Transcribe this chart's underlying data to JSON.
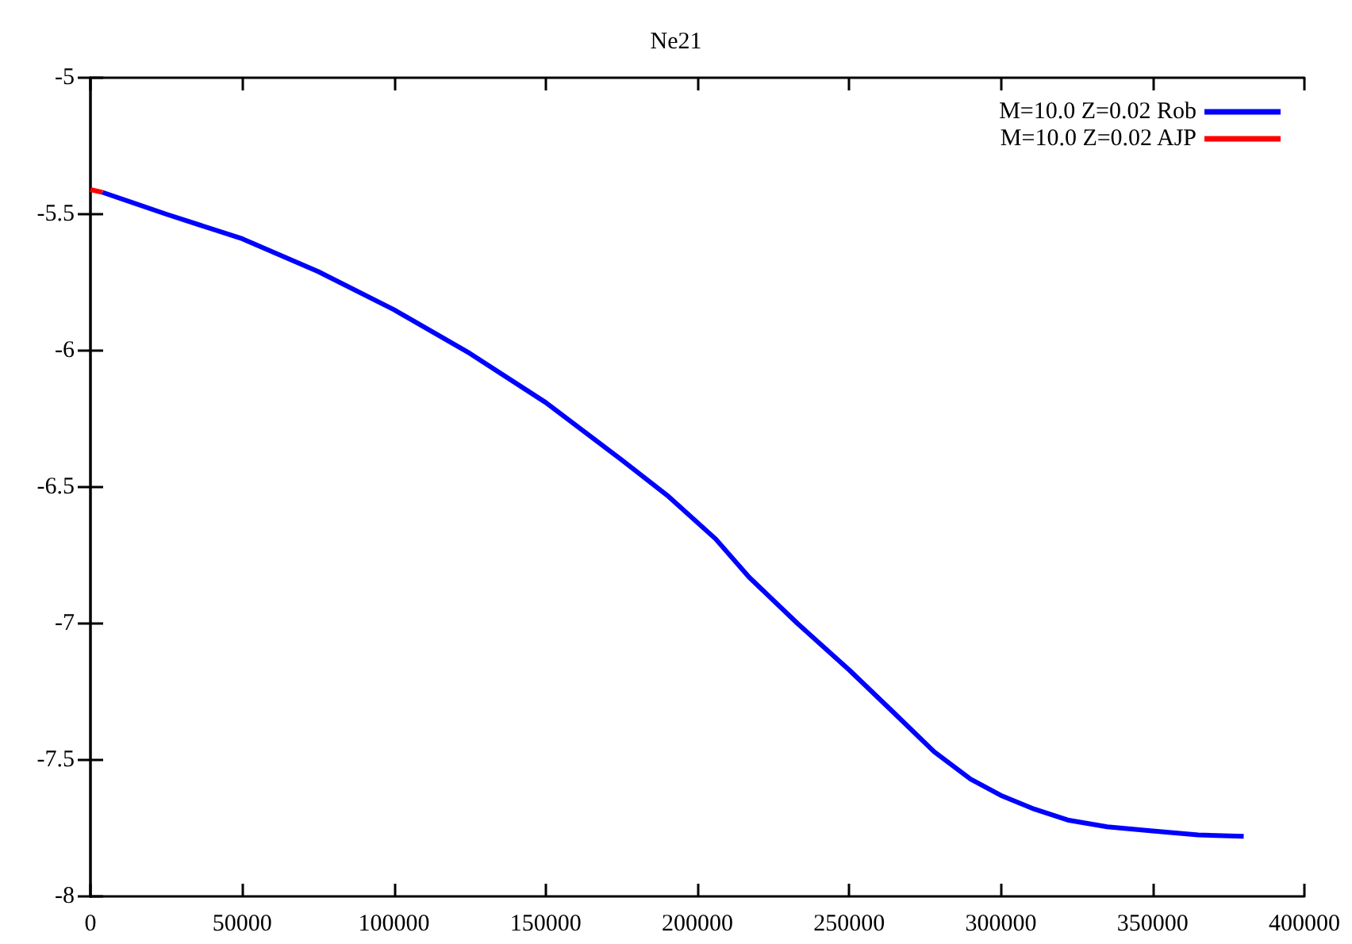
{
  "chart_data": {
    "type": "line",
    "title": "Ne21",
    "series": [
      {
        "name": "M=10.0 Z=0.02 AJP",
        "color": "#ff0000",
        "x": [
          0,
          4000
        ],
        "values": [
          -5.41,
          -5.42
        ]
      },
      {
        "name": "M=10.0 Z=0.02 Rob",
        "color": "#0000ff",
        "x": [
          4000,
          25000,
          50000,
          75000,
          100000,
          125000,
          150000,
          175000,
          190000,
          206000,
          217000,
          233000,
          250000,
          265000,
          278000,
          290000,
          300000,
          311000,
          322000,
          335000,
          350000,
          365000,
          380000
        ],
        "values": [
          -5.42,
          -5.5,
          -5.59,
          -5.71,
          -5.85,
          -6.01,
          -6.19,
          -6.4,
          -6.53,
          -6.69,
          -6.83,
          -7.0,
          -7.17,
          -7.33,
          -7.47,
          -7.57,
          -7.63,
          -7.68,
          -7.72,
          -7.745,
          -7.76,
          -7.775,
          -7.78
        ]
      }
    ],
    "xlim": [
      0,
      400000
    ],
    "xticks": [
      0,
      50000,
      100000,
      150000,
      200000,
      250000,
      300000,
      350000,
      400000
    ],
    "ylim": [
      -8,
      -5
    ],
    "yticks": [
      -8,
      -7.5,
      -7,
      -6.5,
      -6,
      -5.5,
      -5
    ],
    "grid": false,
    "legend": "top right",
    "marker": "none",
    "line_style": "solid"
  }
}
